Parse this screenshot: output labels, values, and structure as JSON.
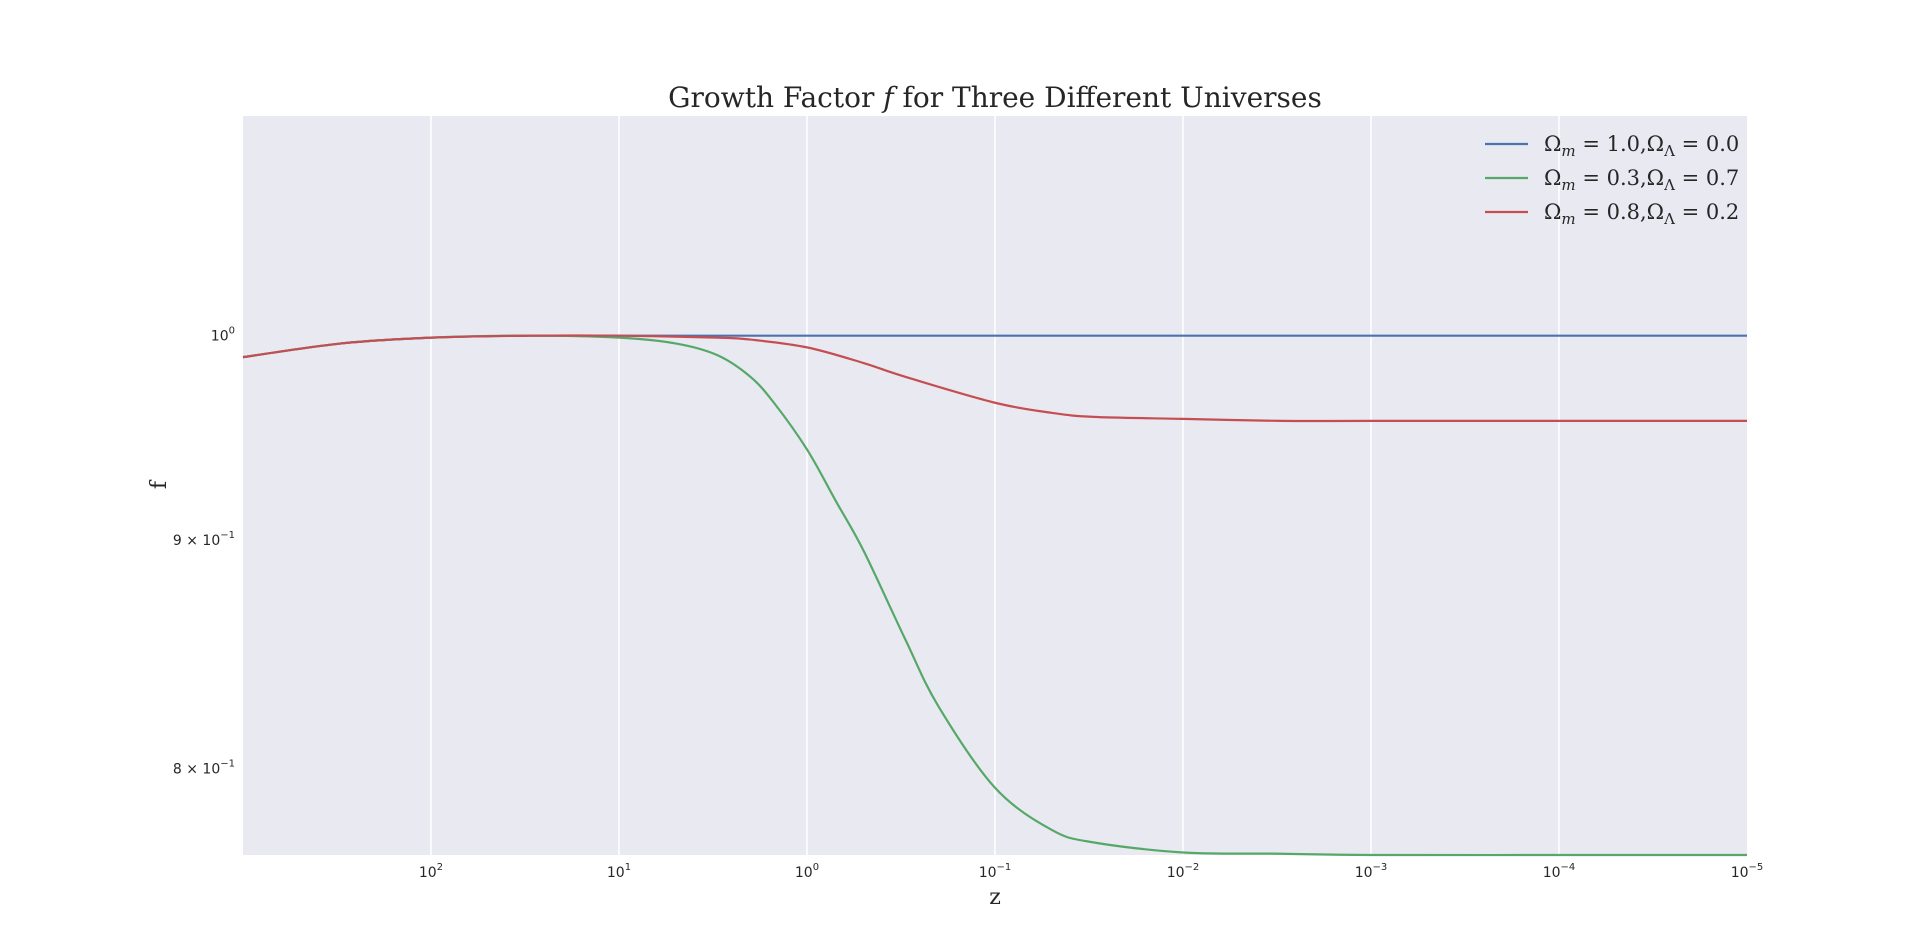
{
  "chart_data": {
    "type": "line",
    "title": "Growth Factor f for Three Different Universes",
    "title_parts": {
      "prefix": "Growth Factor ",
      "symbol": "f",
      "suffix": " for Three Different Universes"
    },
    "xlabel": "z",
    "ylabel": "f",
    "x_scale": "log",
    "x_inverted": true,
    "y_scale": "log",
    "xlim": [
      1000,
      1e-05
    ],
    "ylim": [
      0.765,
      1.12
    ],
    "grid": "x-major",
    "plot_background": "#e9e9f1",
    "legend_location": "upper-right",
    "x_ticks": [
      {
        "value": 100,
        "base": "10",
        "exp": "2"
      },
      {
        "value": 10,
        "base": "10",
        "exp": "1"
      },
      {
        "value": 1,
        "base": "10",
        "exp": "0"
      },
      {
        "value": 0.1,
        "base": "10",
        "exp": "−1"
      },
      {
        "value": 0.01,
        "base": "10",
        "exp": "−2"
      },
      {
        "value": 0.001,
        "base": "10",
        "exp": "−3"
      },
      {
        "value": 0.0001,
        "base": "10",
        "exp": "−4"
      },
      {
        "value": 1e-05,
        "base": "10",
        "exp": "−5"
      }
    ],
    "y_ticks": [
      {
        "value": 1.0,
        "coef": "",
        "base": "10",
        "exp": "0"
      },
      {
        "value": 0.9,
        "coef": "9 × ",
        "base": "10",
        "exp": "−1"
      },
      {
        "value": 0.8,
        "coef": "8 × ",
        "base": "10",
        "exp": "−1"
      }
    ],
    "series": [
      {
        "name": "Ωm = 1.0,ΩΛ = 0.0",
        "legend_parts": {
          "m": "1.0",
          "lambda": "0.0"
        },
        "color": "#4c72b0",
        "x": [
          1000,
          300,
          100,
          30,
          10,
          3,
          1,
          0.3,
          0.1,
          0.03,
          0.01,
          0.001,
          0.0001,
          1e-05
        ],
        "y": [
          0.989,
          0.996,
          0.999,
          1.0,
          1.0,
          1.0,
          1.0,
          1.0,
          1.0,
          1.0,
          1.0,
          1.0,
          1.0,
          1.0
        ]
      },
      {
        "name": "Ωm = 0.3,ΩΛ = 0.7",
        "legend_parts": {
          "m": "0.3",
          "lambda": "0.7"
        },
        "color": "#55a868",
        "x": [
          1000,
          300,
          100,
          30,
          10,
          5,
          3,
          2,
          1.5,
          1,
          0.7,
          0.5,
          0.3,
          0.2,
          0.1,
          0.05,
          0.03,
          0.01,
          0.003,
          0.001,
          0.0001,
          1e-05
        ],
        "y": [
          0.989,
          0.996,
          0.999,
          1.0,
          0.999,
          0.996,
          0.99,
          0.979,
          0.966,
          0.943,
          0.918,
          0.895,
          0.855,
          0.826,
          0.792,
          0.775,
          0.77,
          0.766,
          0.7655,
          0.765,
          0.765,
          0.765
        ]
      },
      {
        "name": "Ωm = 0.8,ΩΛ = 0.2",
        "legend_parts": {
          "m": "0.8",
          "lambda": "0.2"
        },
        "color": "#c44e52",
        "x": [
          1000,
          300,
          100,
          30,
          10,
          3,
          2,
          1,
          0.5,
          0.3,
          0.1,
          0.05,
          0.03,
          0.01,
          0.003,
          0.001,
          0.0001,
          1e-05
        ],
        "y": [
          0.989,
          0.996,
          0.999,
          1.0,
          1.0,
          0.999,
          0.998,
          0.994,
          0.986,
          0.979,
          0.966,
          0.961,
          0.959,
          0.958,
          0.957,
          0.957,
          0.957,
          0.957
        ]
      }
    ]
  }
}
